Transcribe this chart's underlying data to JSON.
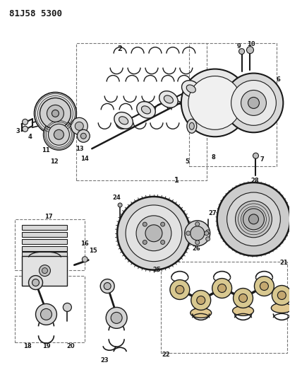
{
  "title": "81J58 5300",
  "bg": "#ffffff",
  "lc": "#1a1a1a",
  "tc": "#1a1a1a",
  "fig_w": 4.11,
  "fig_h": 5.33,
  "dpi": 100
}
